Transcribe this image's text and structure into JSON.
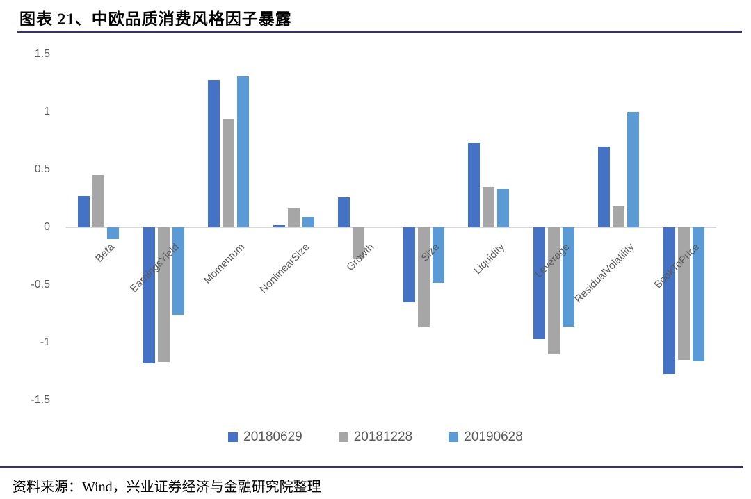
{
  "header": {
    "title": "图表 21、中欧品质消费风格因子暴露"
  },
  "footer": {
    "source": "资料来源：Wind，兴业证券经济与金融研究院整理"
  },
  "colors": {
    "rule_navy": "#34346B",
    "axis_line": "#D6D6D6",
    "axis_text": "#595959",
    "series1": "#4472C4",
    "series2": "#A6A6A6",
    "series3": "#5B9BD5"
  },
  "chart_data": {
    "type": "bar",
    "title": "中欧品质消费风格因子暴露",
    "categories": [
      "Beta",
      "EarningsYield",
      "Momentum",
      "NonlinearSize",
      "Growth",
      "Size",
      "Liquidity",
      "Leverage",
      "ResidualVolatility",
      "BookToPrice"
    ],
    "series": [
      {
        "name": "20180629",
        "color": "#4472C4",
        "values": [
          0.27,
          -1.18,
          1.28,
          0.02,
          0.26,
          -0.65,
          0.73,
          -0.97,
          0.7,
          -1.27
        ]
      },
      {
        "name": "20181228",
        "color": "#A6A6A6",
        "values": [
          0.45,
          -1.17,
          0.94,
          0.16,
          -0.27,
          -0.87,
          0.35,
          -1.1,
          0.18,
          -1.15
        ]
      },
      {
        "name": "20190628",
        "color": "#5B9BD5",
        "values": [
          -0.1,
          -0.76,
          1.31,
          0.09,
          0.0,
          -0.48,
          0.33,
          -0.86,
          1.0,
          -1.16
        ]
      }
    ],
    "xlabel": "",
    "ylabel": "",
    "ylim": [
      -1.5,
      1.5
    ],
    "ytick_labels": [
      "1.5",
      "1",
      "0.5",
      "0",
      "-0.5",
      "-1",
      "-1.5"
    ],
    "ytick_values": [
      1.5,
      1,
      0.5,
      0,
      -0.5,
      -1,
      -1.5
    ],
    "grid": false,
    "legend_position": "bottom"
  }
}
